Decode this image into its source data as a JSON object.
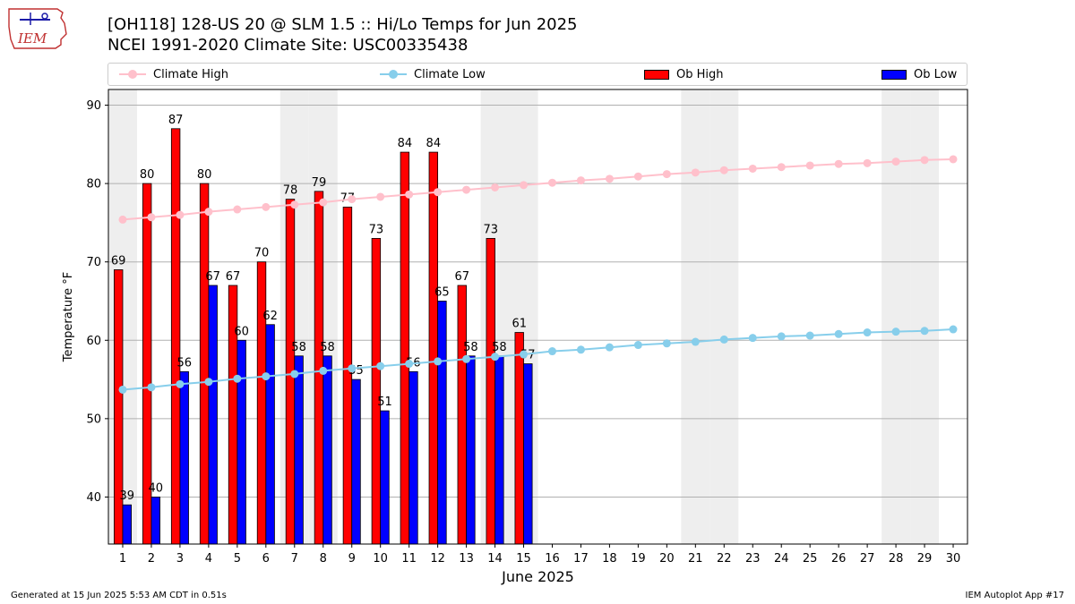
{
  "header": {
    "title_line1": "[OH118] 128-US 20 @ SLM 1.5 :: Hi/Lo Temps for Jun 2025",
    "title_line2": "NCEI 1991-2020 Climate Site: USC00335438",
    "logo_text": "IEM"
  },
  "legend": {
    "items": [
      {
        "label": "Climate High",
        "kind": "line",
        "color": "#ffc0cb"
      },
      {
        "label": "Climate Low",
        "kind": "line",
        "color": "#87ceeb"
      },
      {
        "label": "Ob High",
        "kind": "bar",
        "color": "#ff0000"
      },
      {
        "label": "Ob Low",
        "kind": "bar",
        "color": "#0000ff"
      }
    ],
    "placement": "top"
  },
  "footer": {
    "left": "Generated at 15 Jun 2025 5:53 AM CDT in 0.51s",
    "right": "IEM Autoplot App #17"
  },
  "chart_data": {
    "type": "bar",
    "title": "[OH118] 128-US 20 @ SLM 1.5 :: Hi/Lo Temps for Jun 2025",
    "xlabel": "June 2025",
    "ylabel": "Temperature °F",
    "xlim": [
      0.5,
      30.5
    ],
    "ylim": [
      34,
      92
    ],
    "yticks": [
      40,
      50,
      60,
      70,
      80,
      90
    ],
    "grid": "horizontal",
    "weekend_days": [
      1,
      7,
      8,
      14,
      15,
      21,
      22,
      28,
      29
    ],
    "colors": {
      "weekend_shade": "#eeeeee",
      "ob_high": "#ff0000",
      "ob_low": "#0000ff",
      "climate_high": "#ffc0cb",
      "climate_low": "#87ceeb"
    },
    "days": [
      1,
      2,
      3,
      4,
      5,
      6,
      7,
      8,
      9,
      10,
      11,
      12,
      13,
      14,
      15,
      16,
      17,
      18,
      19,
      20,
      21,
      22,
      23,
      24,
      25,
      26,
      27,
      28,
      29,
      30
    ],
    "series": [
      {
        "name": "Ob High",
        "kind": "bar",
        "days": [
          1,
          2,
          3,
          4,
          5,
          6,
          7,
          8,
          9,
          10,
          11,
          12,
          13,
          14,
          15
        ],
        "values": [
          69,
          80,
          87,
          80,
          67,
          70,
          78,
          79,
          77,
          73,
          84,
          84,
          67,
          73,
          61
        ]
      },
      {
        "name": "Ob Low",
        "kind": "bar",
        "days": [
          1,
          2,
          3,
          4,
          5,
          6,
          7,
          8,
          9,
          10,
          11,
          12,
          13,
          14,
          15
        ],
        "values": [
          39,
          40,
          56,
          67,
          60,
          62,
          58,
          58,
          55,
          51,
          56,
          65,
          58,
          58,
          57
        ]
      },
      {
        "name": "Climate High",
        "kind": "line",
        "days": [
          1,
          2,
          3,
          4,
          5,
          6,
          7,
          8,
          9,
          10,
          11,
          12,
          13,
          14,
          15,
          16,
          17,
          18,
          19,
          20,
          21,
          22,
          23,
          24,
          25,
          26,
          27,
          28,
          29,
          30
        ],
        "values": [
          75.4,
          75.7,
          76.0,
          76.4,
          76.7,
          77.0,
          77.3,
          77.6,
          78.0,
          78.3,
          78.6,
          78.9,
          79.2,
          79.5,
          79.8,
          80.1,
          80.4,
          80.6,
          80.9,
          81.2,
          81.4,
          81.7,
          81.9,
          82.1,
          82.3,
          82.5,
          82.6,
          82.8,
          83.0,
          83.1
        ]
      },
      {
        "name": "Climate Low",
        "kind": "line",
        "days": [
          1,
          2,
          3,
          4,
          5,
          6,
          7,
          8,
          9,
          10,
          11,
          12,
          13,
          14,
          15,
          16,
          17,
          18,
          19,
          20,
          21,
          22,
          23,
          24,
          25,
          26,
          27,
          28,
          29,
          30
        ],
        "values": [
          53.7,
          54.0,
          54.4,
          54.7,
          55.1,
          55.4,
          55.7,
          56.1,
          56.4,
          56.7,
          57.0,
          57.3,
          57.6,
          57.9,
          58.2,
          58.6,
          58.8,
          59.1,
          59.4,
          59.6,
          59.8,
          60.1,
          60.3,
          60.5,
          60.6,
          60.8,
          61.0,
          61.1,
          61.2,
          61.4
        ]
      }
    ]
  }
}
